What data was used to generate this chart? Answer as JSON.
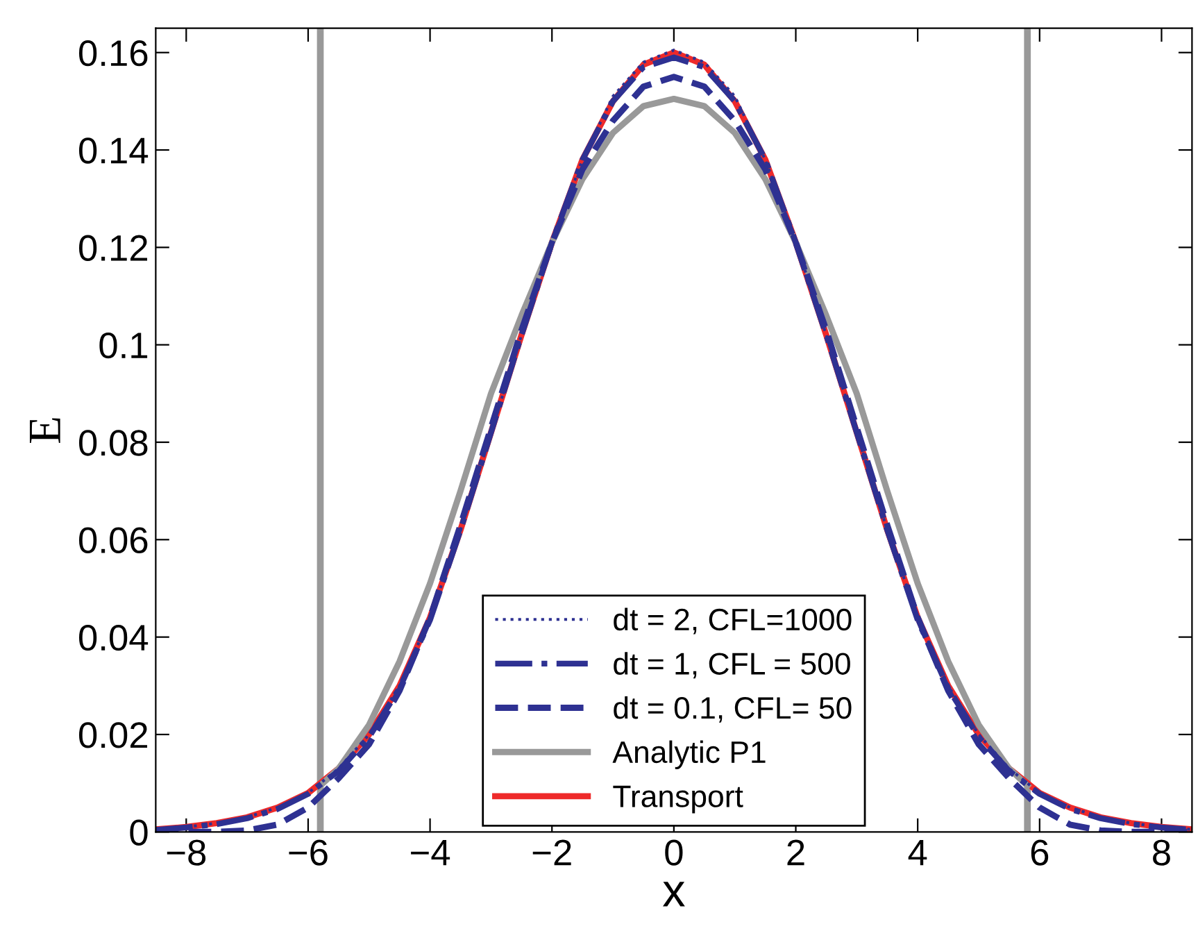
{
  "chart_data": {
    "type": "line",
    "xlabel": "x",
    "ylabel": "E",
    "xlim": [
      -8.5,
      8.5
    ],
    "ylim": [
      0,
      0.165
    ],
    "xticks": [
      {
        "value": -8,
        "label": "−8"
      },
      {
        "value": -6,
        "label": "−6"
      },
      {
        "value": -4,
        "label": "−4"
      },
      {
        "value": -2,
        "label": "−2"
      },
      0,
      2,
      4,
      6,
      8
    ],
    "yticks": [
      0,
      0.02,
      0.04,
      0.06,
      0.08,
      0.1,
      0.12,
      0.14,
      0.16
    ],
    "grid": false,
    "legend": "bottom",
    "ref_lines": [
      {
        "axis": "x",
        "value": -5.8,
        "color": "#999999"
      },
      {
        "axis": "x",
        "value": 5.8,
        "color": "#999999"
      }
    ],
    "series": [
      {
        "name": "dt = 2, CFL=1000",
        "color": "#2e3192",
        "line_style": "dotted",
        "x": [
          -8.5,
          -8,
          -7.5,
          -7,
          -6.5,
          -6,
          -5.5,
          -5,
          -4.5,
          -4,
          -3.5,
          -3,
          -2.5,
          -2,
          -1.5,
          -1,
          -0.5,
          0,
          0.5,
          1,
          1.5,
          2,
          2.5,
          3,
          3.5,
          4,
          4.5,
          5,
          5.5,
          6,
          6.5,
          7,
          7.5,
          8,
          8.5
        ],
        "values": [
          0.0005,
          0.001,
          0.0018,
          0.003,
          0.005,
          0.008,
          0.013,
          0.02,
          0.03,
          0.044,
          0.062,
          0.082,
          0.102,
          0.121,
          0.138,
          0.151,
          0.158,
          0.1605,
          0.158,
          0.151,
          0.138,
          0.121,
          0.102,
          0.082,
          0.062,
          0.044,
          0.03,
          0.02,
          0.013,
          0.008,
          0.005,
          0.003,
          0.0018,
          0.001,
          0.0005
        ]
      },
      {
        "name": "dt = 1, CFL = 500",
        "color": "#2e3192",
        "line_style": "dashdot",
        "x": [
          -8.5,
          -8,
          -7.5,
          -7,
          -6.5,
          -6,
          -5.5,
          -5,
          -4.5,
          -4,
          -3.5,
          -3,
          -2.5,
          -2,
          -1.5,
          -1,
          -0.5,
          0,
          0.5,
          1,
          1.5,
          2,
          2.5,
          3,
          3.5,
          4,
          4.5,
          5,
          5.5,
          6,
          6.5,
          7,
          7.5,
          8,
          8.5
        ],
        "values": [
          0.0004,
          0.0009,
          0.0016,
          0.0028,
          0.0047,
          0.0078,
          0.0125,
          0.0195,
          0.0295,
          0.0435,
          0.062,
          0.082,
          0.102,
          0.121,
          0.138,
          0.15,
          0.157,
          0.159,
          0.157,
          0.15,
          0.138,
          0.121,
          0.102,
          0.082,
          0.062,
          0.0435,
          0.0295,
          0.0195,
          0.0125,
          0.0078,
          0.0047,
          0.0028,
          0.0016,
          0.0009,
          0.0004
        ]
      },
      {
        "name": "dt = 0.1, CFL= 50",
        "color": "#2e3192",
        "line_style": "dashed",
        "x": [
          -8.5,
          -8,
          -7.5,
          -7,
          -6.5,
          -6,
          -5.5,
          -5,
          -4.5,
          -4,
          -3.5,
          -3,
          -2.5,
          -2,
          -1.5,
          -1,
          -0.5,
          0,
          0.5,
          1,
          1.5,
          2,
          2.5,
          3,
          3.5,
          4,
          4.5,
          5,
          5.5,
          6,
          6.5,
          7,
          7.5,
          8,
          8.5
        ],
        "values": [
          0,
          0,
          0,
          0.0003,
          0.0015,
          0.005,
          0.011,
          0.018,
          0.029,
          0.044,
          0.063,
          0.083,
          0.103,
          0.121,
          0.136,
          0.146,
          0.153,
          0.155,
          0.153,
          0.146,
          0.136,
          0.121,
          0.103,
          0.083,
          0.063,
          0.044,
          0.029,
          0.018,
          0.011,
          0.005,
          0.0015,
          0.0003,
          0,
          0,
          0
        ]
      },
      {
        "name": "Analytic P1",
        "color": "#999999",
        "line_style": "solid",
        "x": [
          -5.8,
          -5.5,
          -5,
          -4.5,
          -4,
          -3.5,
          -3,
          -2.5,
          -2,
          -1.5,
          -1,
          -0.5,
          0,
          0.5,
          1,
          1.5,
          2,
          2.5,
          3,
          3.5,
          4,
          4.5,
          5,
          5.5,
          5.8
        ],
        "values": [
          0.0095,
          0.013,
          0.022,
          0.035,
          0.051,
          0.07,
          0.09,
          0.106,
          0.121,
          0.134,
          0.1435,
          0.149,
          0.1505,
          0.149,
          0.1435,
          0.134,
          0.121,
          0.106,
          0.09,
          0.07,
          0.051,
          0.035,
          0.022,
          0.013,
          0.0095
        ]
      },
      {
        "name": "Transport",
        "color": "#ee2a2a",
        "line_style": "solid",
        "x": [
          -8.5,
          -8,
          -7.5,
          -7,
          -6.5,
          -6,
          -5.5,
          -5,
          -4.5,
          -4,
          -3.5,
          -3,
          -2.5,
          -2,
          -1.5,
          -1,
          -0.5,
          0,
          0.5,
          1,
          1.5,
          2,
          2.5,
          3,
          3.5,
          4,
          4.5,
          5,
          5.5,
          6,
          6.5,
          7,
          7.5,
          8,
          8.5
        ],
        "values": [
          0.0005,
          0.001,
          0.0018,
          0.003,
          0.005,
          0.008,
          0.013,
          0.02,
          0.03,
          0.044,
          0.062,
          0.082,
          0.102,
          0.121,
          0.138,
          0.15,
          0.1575,
          0.16,
          0.1575,
          0.15,
          0.138,
          0.121,
          0.102,
          0.082,
          0.062,
          0.044,
          0.03,
          0.02,
          0.013,
          0.008,
          0.005,
          0.003,
          0.0018,
          0.001,
          0.0005
        ]
      }
    ]
  }
}
